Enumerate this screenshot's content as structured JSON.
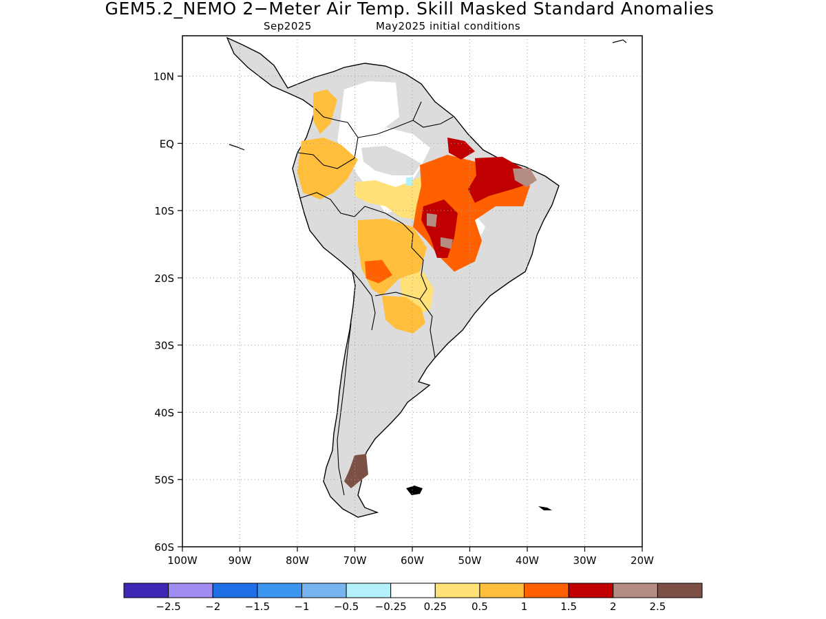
{
  "title": "GEM5.2_NEMO 2−Meter Air Temp. Skill Masked Standard Anomalies",
  "valid_month": "Sep2025",
  "init_label": "May2025 initial conditions",
  "map": {
    "lat_ticks": [
      {
        "value": 10,
        "label": "10N"
      },
      {
        "value": 0,
        "label": "EQ"
      },
      {
        "value": -10,
        "label": "10S"
      },
      {
        "value": -20,
        "label": "20S"
      },
      {
        "value": -30,
        "label": "30S"
      },
      {
        "value": -40,
        "label": "40S"
      },
      {
        "value": -50,
        "label": "50S"
      },
      {
        "value": -60,
        "label": "60S"
      }
    ],
    "lon_ticks": [
      {
        "value": -100,
        "label": "100W"
      },
      {
        "value": -90,
        "label": "90W"
      },
      {
        "value": -80,
        "label": "80W"
      },
      {
        "value": -70,
        "label": "70W"
      },
      {
        "value": -60,
        "label": "60W"
      },
      {
        "value": -50,
        "label": "50W"
      },
      {
        "value": -40,
        "label": "40W"
      },
      {
        "value": -30,
        "label": "30W"
      },
      {
        "value": -20,
        "label": "20W"
      }
    ],
    "lon_range": [
      -100,
      -20
    ],
    "lat_range": [
      -60,
      16
    ],
    "grid": "dotted",
    "masked_color": "#dcdcdc"
  },
  "colorbar": {
    "colors": [
      "#3c28b4",
      "#a08cf0",
      "#1e6ee6",
      "#3c96f0",
      "#78b4f0",
      "#b4f0fa",
      "#ffffff",
      "#ffe178",
      "#ffbe3c",
      "#ff6000",
      "#c00000",
      "#b48c82",
      "#7d5046"
    ],
    "labels": [
      "−2.5",
      "−2",
      "−1.5",
      "−1",
      "−0.5",
      "−0.25",
      "0.25",
      "0.5",
      "1",
      "1.5",
      "2",
      "2.5"
    ]
  }
}
